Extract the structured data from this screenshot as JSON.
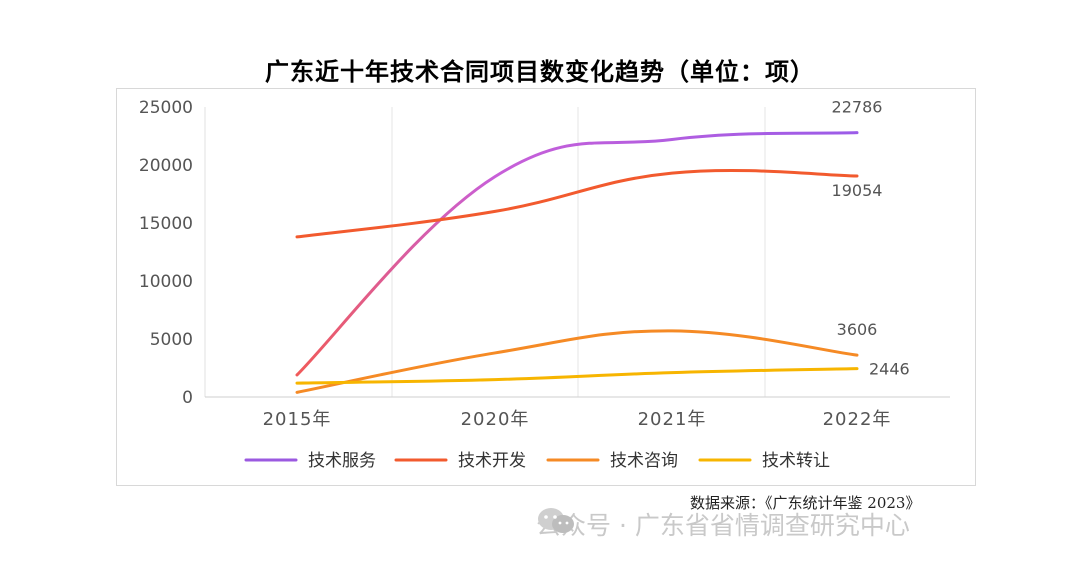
{
  "chart_data": {
    "type": "line",
    "title": "广东近十年技术合同项目数变化趋势（单位：项）",
    "categories": [
      "2015年",
      "2020年",
      "2021年",
      "2022年"
    ],
    "ylim": [
      0,
      25000
    ],
    "yticks": [
      "25000",
      "20000",
      "15000",
      "10000",
      "5000",
      "0"
    ],
    "grid": "vertical",
    "legend_position": "bottom",
    "series": [
      {
        "name": "技术服务",
        "values": [
          1900,
          19000,
          22200,
          22786
        ],
        "color": "#9b59e0",
        "label": "22786",
        "colors": [
          "#f05a5a",
          "#c85fd8",
          "#9b5ce8"
        ]
      },
      {
        "name": "技术开发",
        "values": [
          13800,
          16000,
          19300,
          19054
        ],
        "color": "#f25a2e",
        "label": "19054"
      },
      {
        "name": "技术咨询",
        "values": [
          400,
          3800,
          5700,
          3606
        ],
        "color": "#f58a25",
        "label": "3606"
      },
      {
        "name": "技术转让",
        "values": [
          1200,
          1500,
          2100,
          2446
        ],
        "color": "#f7b500",
        "label": "2446"
      }
    ]
  },
  "source": "数据来源：《广东统计年鉴 2023》",
  "watermark": "公众号 · 广东省省情调查研究中心",
  "watermark_icon": "wechat-icon"
}
